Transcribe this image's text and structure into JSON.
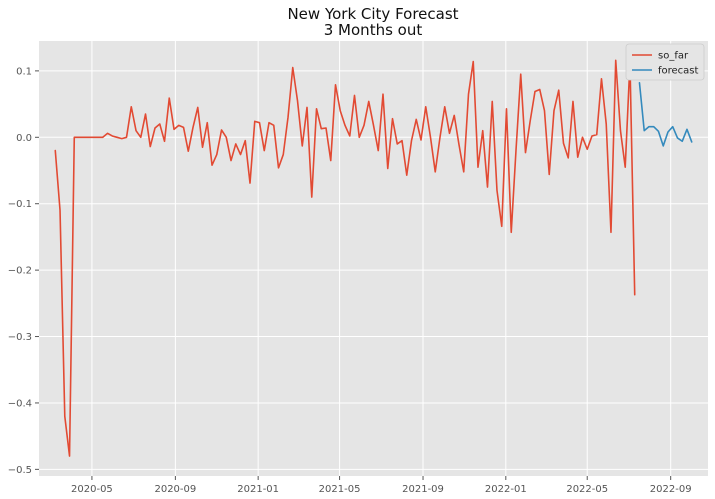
{
  "chart_data": {
    "type": "line",
    "title": "New York City Forecast",
    "subtitle": "3 Months out",
    "xlabel": "",
    "ylabel": "",
    "grid": true,
    "legend_position": "top-right",
    "xlim": [
      "2020-02-13",
      "2022-10-26"
    ],
    "ylim": [
      -0.51,
      0.145
    ],
    "x_ticks": [
      {
        "date": "2020-05-01",
        "label": "2020-05"
      },
      {
        "date": "2020-09-01",
        "label": "2020-09"
      },
      {
        "date": "2021-01-01",
        "label": "2021-01"
      },
      {
        "date": "2021-05-01",
        "label": "2021-05"
      },
      {
        "date": "2021-09-01",
        "label": "2021-09"
      },
      {
        "date": "2022-01-01",
        "label": "2022-01"
      },
      {
        "date": "2022-05-01",
        "label": "2022-05"
      },
      {
        "date": "2022-09-01",
        "label": "2022-09"
      }
    ],
    "y_ticks": [
      {
        "value": 0.1,
        "label": "0.1"
      },
      {
        "value": 0.0,
        "label": "0.0"
      },
      {
        "value": -0.1,
        "label": "−0.1"
      },
      {
        "value": -0.2,
        "label": "−0.2"
      },
      {
        "value": -0.3,
        "label": "−0.3"
      },
      {
        "value": -0.4,
        "label": "−0.4"
      },
      {
        "value": -0.5,
        "label": "−0.5"
      }
    ],
    "series": [
      {
        "name": "so_far",
        "color": "#E24A33",
        "points": [
          [
            "2020-03-08",
            -0.02
          ],
          [
            "2020-03-15",
            -0.11
          ],
          [
            "2020-03-22",
            -0.42
          ],
          [
            "2020-03-29",
            -0.48
          ],
          [
            "2020-04-05",
            0.0
          ],
          [
            "2020-04-12",
            0.0
          ],
          [
            "2020-04-19",
            0.0
          ],
          [
            "2020-04-26",
            0.0
          ],
          [
            "2020-05-03",
            0.0
          ],
          [
            "2020-05-10",
            0.0
          ],
          [
            "2020-05-17",
            0.0
          ],
          [
            "2020-05-24",
            0.006
          ],
          [
            "2020-05-31",
            0.002
          ],
          [
            "2020-06-07",
            0.0
          ],
          [
            "2020-06-14",
            -0.002
          ],
          [
            "2020-06-21",
            0.0
          ],
          [
            "2020-06-28",
            0.046
          ],
          [
            "2020-07-05",
            0.01
          ],
          [
            "2020-07-12",
            0.0
          ],
          [
            "2020-07-19",
            0.035
          ],
          [
            "2020-07-26",
            -0.014
          ],
          [
            "2020-08-02",
            0.014
          ],
          [
            "2020-08-09",
            0.02
          ],
          [
            "2020-08-16",
            -0.006
          ],
          [
            "2020-08-23",
            0.059
          ],
          [
            "2020-08-30",
            0.012
          ],
          [
            "2020-09-06",
            0.018
          ],
          [
            "2020-09-13",
            0.015
          ],
          [
            "2020-09-20",
            -0.021
          ],
          [
            "2020-09-27",
            0.015
          ],
          [
            "2020-10-04",
            0.045
          ],
          [
            "2020-10-11",
            -0.015
          ],
          [
            "2020-10-18",
            0.022
          ],
          [
            "2020-10-25",
            -0.042
          ],
          [
            "2020-11-01",
            -0.026
          ],
          [
            "2020-11-08",
            0.011
          ],
          [
            "2020-11-15",
            0.0
          ],
          [
            "2020-11-22",
            -0.035
          ],
          [
            "2020-11-29",
            -0.01
          ],
          [
            "2020-12-06",
            -0.026
          ],
          [
            "2020-12-13",
            -0.005
          ],
          [
            "2020-12-20",
            -0.069
          ],
          [
            "2020-12-27",
            0.024
          ],
          [
            "2021-01-03",
            0.022
          ],
          [
            "2021-01-10",
            -0.02
          ],
          [
            "2021-01-17",
            0.022
          ],
          [
            "2021-01-24",
            0.018
          ],
          [
            "2021-01-31",
            -0.046
          ],
          [
            "2021-02-07",
            -0.026
          ],
          [
            "2021-02-14",
            0.03
          ],
          [
            "2021-02-21",
            0.105
          ],
          [
            "2021-02-28",
            0.055
          ],
          [
            "2021-03-07",
            -0.013
          ],
          [
            "2021-03-14",
            0.045
          ],
          [
            "2021-03-21",
            -0.09
          ],
          [
            "2021-03-28",
            0.043
          ],
          [
            "2021-04-04",
            0.013
          ],
          [
            "2021-04-11",
            0.014
          ],
          [
            "2021-04-18",
            -0.035
          ],
          [
            "2021-04-25",
            0.079
          ],
          [
            "2021-05-02",
            0.04
          ],
          [
            "2021-05-09",
            0.018
          ],
          [
            "2021-05-16",
            0.002
          ],
          [
            "2021-05-23",
            0.063
          ],
          [
            "2021-05-30",
            0.0
          ],
          [
            "2021-06-06",
            0.018
          ],
          [
            "2021-06-13",
            0.054
          ],
          [
            "2021-06-20",
            0.018
          ],
          [
            "2021-06-27",
            -0.02
          ],
          [
            "2021-07-04",
            0.065
          ],
          [
            "2021-07-11",
            -0.047
          ],
          [
            "2021-07-18",
            0.028
          ],
          [
            "2021-07-25",
            -0.01
          ],
          [
            "2021-08-01",
            -0.005
          ],
          [
            "2021-08-08",
            -0.057
          ],
          [
            "2021-08-15",
            -0.005
          ],
          [
            "2021-08-22",
            0.027
          ],
          [
            "2021-08-29",
            -0.004
          ],
          [
            "2021-09-05",
            0.046
          ],
          [
            "2021-09-12",
            0.0
          ],
          [
            "2021-09-19",
            -0.052
          ],
          [
            "2021-09-26",
            0.0
          ],
          [
            "2021-10-03",
            0.046
          ],
          [
            "2021-10-10",
            0.006
          ],
          [
            "2021-10-17",
            0.033
          ],
          [
            "2021-10-24",
            -0.011
          ],
          [
            "2021-10-31",
            -0.052
          ],
          [
            "2021-11-07",
            0.065
          ],
          [
            "2021-11-14",
            0.114
          ],
          [
            "2021-11-21",
            -0.045
          ],
          [
            "2021-11-28",
            0.01
          ],
          [
            "2021-12-05",
            -0.075
          ],
          [
            "2021-12-12",
            0.054
          ],
          [
            "2021-12-19",
            -0.08
          ],
          [
            "2021-12-26",
            -0.134
          ],
          [
            "2022-01-02",
            0.043
          ],
          [
            "2022-01-09",
            -0.143
          ],
          [
            "2022-01-16",
            -0.02
          ],
          [
            "2022-01-23",
            0.095
          ],
          [
            "2022-01-30",
            -0.023
          ],
          [
            "2022-02-06",
            0.025
          ],
          [
            "2022-02-13",
            0.069
          ],
          [
            "2022-02-20",
            0.072
          ],
          [
            "2022-02-27",
            0.04
          ],
          [
            "2022-03-06",
            -0.056
          ],
          [
            "2022-03-13",
            0.04
          ],
          [
            "2022-03-20",
            0.071
          ],
          [
            "2022-03-27",
            -0.009
          ],
          [
            "2022-04-03",
            -0.031
          ],
          [
            "2022-04-10",
            0.054
          ],
          [
            "2022-04-17",
            -0.03
          ],
          [
            "2022-04-24",
            0.0
          ],
          [
            "2022-05-01",
            -0.018
          ],
          [
            "2022-05-08",
            0.002
          ],
          [
            "2022-05-15",
            0.004
          ],
          [
            "2022-05-22",
            0.088
          ],
          [
            "2022-05-29",
            0.02
          ],
          [
            "2022-06-05",
            -0.143
          ],
          [
            "2022-06-12",
            0.116
          ],
          [
            "2022-06-19",
            0.01
          ],
          [
            "2022-06-26",
            -0.045
          ],
          [
            "2022-07-03",
            0.113
          ],
          [
            "2022-07-10",
            -0.237
          ]
        ]
      },
      {
        "name": "forecast",
        "color": "#348ABD",
        "points": [
          [
            "2022-07-17",
            0.082
          ],
          [
            "2022-07-24",
            0.01
          ],
          [
            "2022-07-31",
            0.016
          ],
          [
            "2022-08-07",
            0.016
          ],
          [
            "2022-08-14",
            0.009
          ],
          [
            "2022-08-21",
            -0.013
          ],
          [
            "2022-08-28",
            0.008
          ],
          [
            "2022-09-04",
            0.016
          ],
          [
            "2022-09-11",
            -0.001
          ],
          [
            "2022-09-18",
            -0.006
          ],
          [
            "2022-09-25",
            0.012
          ],
          [
            "2022-10-02",
            -0.007
          ]
        ]
      }
    ]
  }
}
